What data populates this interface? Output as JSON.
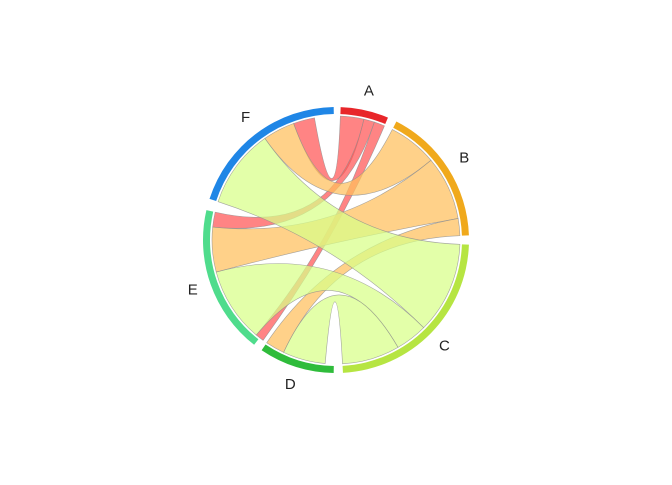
{
  "chart_data": {
    "type": "chord",
    "sectors": [
      {
        "name": "A",
        "color": "#e8262a",
        "start": 2,
        "end": 23
      },
      {
        "name": "B",
        "color": "#f0a91c",
        "start": 27,
        "end": 88
      },
      {
        "name": "C",
        "color": "#b6e542",
        "start": 92,
        "end": 177
      },
      {
        "name": "D",
        "color": "#2fbc3b",
        "start": 181,
        "end": 214
      },
      {
        "name": "E",
        "color": "#4fdc8c",
        "start": 218,
        "end": 283
      },
      {
        "name": "F",
        "color": "#1f86e6",
        "start": 288,
        "end": 359
      }
    ],
    "links": [
      {
        "from": "A",
        "to": "F",
        "color": "#ff5555",
        "a": [
          2,
          13
        ],
        "b": [
          340,
          350
        ]
      },
      {
        "from": "A",
        "to": "E",
        "color": "#ff5555",
        "a": [
          13,
          18
        ],
        "b": [
          276,
          283
        ]
      },
      {
        "from": "A",
        "to": "D",
        "color": "#ff5555",
        "a": [
          18,
          23
        ],
        "b": [
          216,
          220
        ]
      },
      {
        "from": "B",
        "to": "F",
        "color": "#ffbf5c",
        "a": [
          27,
          50
        ],
        "b": [
          325,
          340
        ]
      },
      {
        "from": "B",
        "to": "E",
        "color": "#ffbf5c",
        "a": [
          50,
          80
        ],
        "b": [
          255,
          276
        ]
      },
      {
        "from": "B",
        "to": "D",
        "color": "#ffbf5c",
        "a": [
          80,
          88
        ],
        "b": [
          205,
          214
        ]
      },
      {
        "from": "C",
        "to": "F",
        "color": "#d8ff88",
        "a": [
          92,
          135
        ],
        "b": [
          288,
          325
        ]
      },
      {
        "from": "C",
        "to": "E",
        "color": "#d8ff88",
        "a": [
          135,
          150
        ],
        "b": [
          220,
          255
        ]
      },
      {
        "from": "C",
        "to": "D",
        "color": "#d8ff88",
        "a": [
          150,
          177
        ],
        "b": [
          185,
          205
        ]
      }
    ]
  }
}
